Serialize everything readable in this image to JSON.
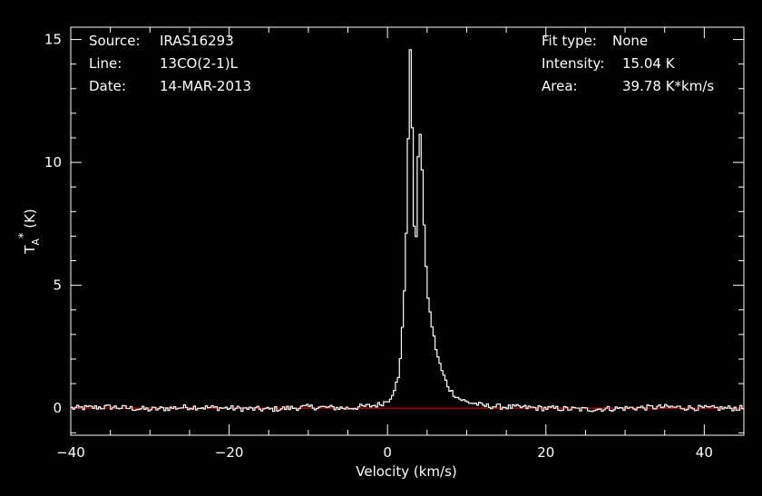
{
  "info": {
    "left": [
      {
        "label": "Source:",
        "value": "IRAS16293"
      },
      {
        "label": "Line:",
        "value": "13CO(2-1)L"
      },
      {
        "label": "Date:",
        "value": "14-MAR-2013"
      }
    ],
    "right": [
      {
        "label": "Fit type:",
        "value": "None"
      },
      {
        "label": "Intensity:",
        "value": "15.04 K"
      },
      {
        "label": "Area:",
        "value": "39.78 K*km/s"
      }
    ]
  },
  "colors": {
    "background": "#000000",
    "axes": "#ffffff",
    "spectrum": "#ffffff",
    "baseline": "#ff0000"
  },
  "chart_data": {
    "type": "line",
    "style": "step",
    "xlabel": "Velocity (km/s)",
    "ylabel": "T_A^* (K)",
    "xlim": [
      -40,
      45
    ],
    "ylim": [
      -1.1,
      15.5
    ],
    "xticks": [
      -40,
      -20,
      0,
      20,
      40
    ],
    "xtick_labels": [
      "−40",
      "−20",
      "0",
      "20",
      "40"
    ],
    "yticks": [
      0,
      5,
      10,
      15
    ],
    "ytick_labels": [
      "0",
      "5",
      "10",
      "15"
    ],
    "baseline": 0,
    "series": [
      {
        "x": [
          -40,
          -35,
          -30,
          -25,
          -20,
          -15,
          -10,
          -5,
          -2,
          -1,
          0,
          0.5,
          1,
          1.5,
          2,
          2.3,
          2.6,
          2.9,
          3.1,
          3.3,
          3.5,
          3.7,
          3.9,
          4.1,
          4.3,
          4.5,
          4.7,
          4.9,
          5.1,
          5.4,
          5.8,
          6.2,
          6.6,
          7,
          7.5,
          8,
          9,
          10,
          11,
          12,
          15,
          20,
          25,
          30,
          35,
          40,
          45
        ],
        "y": [
          0,
          0.05,
          -0.05,
          0.05,
          0,
          -0.05,
          0.05,
          0,
          0.1,
          0.15,
          0.3,
          0.5,
          0.9,
          1.3,
          4.0,
          6.0,
          10.5,
          15.0,
          12.0,
          8.0,
          6.2,
          7.5,
          10.5,
          11.3,
          10.5,
          8.5,
          6.8,
          5.5,
          4.6,
          3.8,
          3.0,
          2.3,
          1.8,
          1.4,
          1.0,
          0.7,
          0.4,
          0.25,
          0.2,
          0.1,
          0.05,
          0,
          -0.05,
          0,
          0.05,
          0,
          0
        ]
      }
    ]
  }
}
